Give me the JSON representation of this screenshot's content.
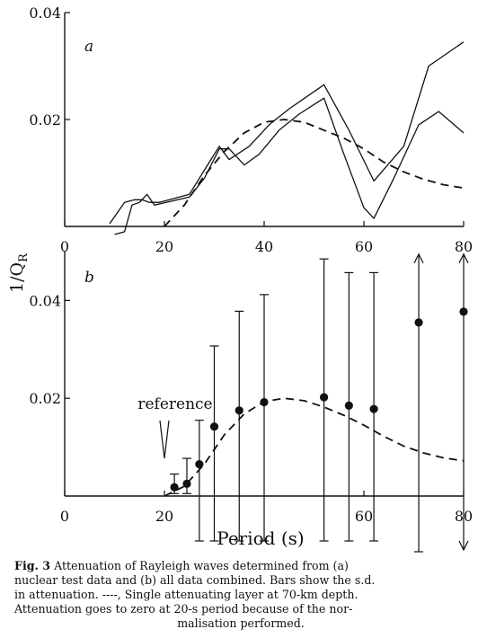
{
  "figure": {
    "ylabel": "1/Q",
    "ylabel_sub": "R"
  },
  "caption": {
    "fig_label": "Fig. 3",
    "lines": [
      " Attenuation of Rayleigh waves determined from (a)",
      "nuclear test data and (b) all data combined. Bars show the s.d.",
      "in attenuation. ----, Single attenuating layer at 70-km depth.",
      "Attenuation goes to zero at 20-s period because of the nor-",
      "malisation performed."
    ]
  },
  "chart_data": [
    {
      "panel": "a",
      "type": "line",
      "xlim": [
        0,
        80
      ],
      "ylim": [
        0,
        0.04
      ],
      "x_ticks": [
        0,
        20,
        40,
        60,
        80
      ],
      "y_ticks": [
        0.02,
        0.04
      ],
      "x_tick_labels": [
        "0",
        "20",
        "40",
        "60",
        "80"
      ],
      "y_tick_labels": [
        "0.02",
        "0.04"
      ],
      "series": [
        {
          "style": "solid",
          "x": [
            9,
            12,
            14,
            15.5,
            17,
            19,
            25,
            29,
            31,
            33,
            37,
            41,
            45,
            52,
            57,
            62,
            68,
            73,
            80
          ],
          "y": [
            0.0005,
            0.0045,
            0.005,
            0.005,
            0.0045,
            0.0045,
            0.006,
            0.012,
            0.015,
            0.0125,
            0.015,
            0.019,
            0.022,
            0.0265,
            0.018,
            0.0085,
            0.015,
            0.03,
            0.0345
          ]
        },
        {
          "style": "solid",
          "x": [
            10,
            12,
            13.5,
            15,
            16.5,
            18,
            25,
            28,
            31,
            33,
            36,
            39,
            43,
            47,
            52,
            56,
            60,
            62,
            66,
            71,
            75,
            80
          ],
          "y": [
            -0.0015,
            -0.001,
            0.004,
            0.0045,
            0.006,
            0.004,
            0.0055,
            0.009,
            0.0145,
            0.0145,
            0.0115,
            0.0135,
            0.018,
            0.021,
            0.024,
            0.0135,
            0.0035,
            0.0015,
            0.009,
            0.019,
            0.0215,
            0.0175
          ]
        },
        {
          "style": "dashed",
          "x": [
            20,
            24,
            28,
            32,
            36,
            40,
            44,
            48,
            52,
            56,
            60,
            64,
            68,
            72,
            76,
            80
          ],
          "y": [
            0,
            0.004,
            0.0095,
            0.014,
            0.0175,
            0.0195,
            0.02,
            0.0195,
            0.018,
            0.0165,
            0.0145,
            0.012,
            0.0102,
            0.0088,
            0.0078,
            0.0072
          ]
        }
      ]
    },
    {
      "panel": "b",
      "type": "scatter",
      "xlabel": "Period (s)",
      "xlim": [
        0,
        80
      ],
      "ylim": [
        0,
        0.05
      ],
      "x_ticks": [
        0,
        20,
        60,
        80
      ],
      "y_ticks": [
        0.02,
        0.04
      ],
      "x_tick_labels": [
        "0",
        "20",
        "60",
        "80"
      ],
      "y_tick_labels": [
        "0.02",
        "0.04"
      ],
      "annotation": "reference",
      "points": {
        "x": [
          22,
          24.5,
          27,
          30,
          35,
          40,
          52,
          57,
          62,
          71,
          80
        ],
        "y": [
          0.0018,
          0.0025,
          0.0065,
          0.0142,
          0.0175,
          0.0192,
          0.0202,
          0.0185,
          0.0178,
          0.0355,
          0.0377
        ],
        "err_low": [
          0.0005,
          0.0005,
          0.0,
          0.0,
          0.0,
          0.0,
          0.0,
          0.0,
          0.0,
          0.0,
          0.0
        ],
        "err_high": [
          0.0045,
          0.0077,
          0.0155,
          0.0307,
          0.0378,
          0.0412,
          0.0485,
          0.0457,
          0.0457,
          0.0495,
          0.0495
        ],
        "arrow_up": [
          false,
          false,
          false,
          false,
          false,
          false,
          false,
          false,
          false,
          true,
          true
        ],
        "arrow_down": [
          false,
          false,
          false,
          false,
          false,
          false,
          false,
          false,
          false,
          false,
          true
        ]
      },
      "model_curve": {
        "style": "dashed",
        "x": [
          20,
          24,
          28,
          32,
          36,
          40,
          44,
          48,
          52,
          56,
          60,
          64,
          68,
          72,
          76,
          80
        ],
        "y": [
          0,
          0.002,
          0.0065,
          0.0125,
          0.0168,
          0.0193,
          0.02,
          0.0195,
          0.0182,
          0.0165,
          0.0145,
          0.0122,
          0.0102,
          0.0088,
          0.0078,
          0.0072
        ]
      }
    }
  ]
}
